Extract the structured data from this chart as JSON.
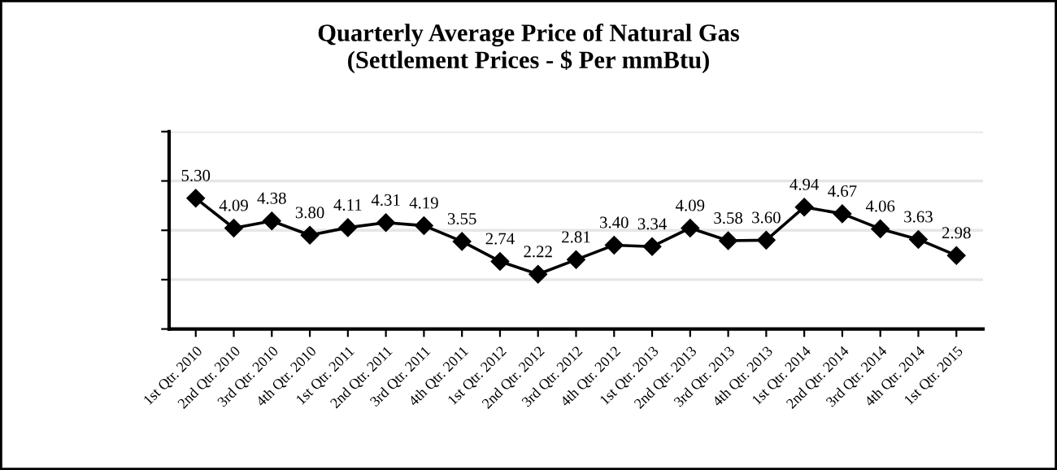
{
  "chart_data": {
    "type": "line",
    "title": "Quarterly Average Price of Natural Gas\n(Settlement Prices - $ Per mmBtu)",
    "categories": [
      "1st Qtr. 2010",
      "2nd Qtr. 2010",
      "3rd Qtr. 2010",
      "4th Qtr. 2010",
      "1st Qtr. 2011",
      "2nd Qtr. 2011",
      "3rd Qtr. 2011",
      "4th Qtr. 2011",
      "1st Qtr. 2012",
      "2nd Qtr. 2012",
      "3rd Qtr. 2012",
      "4th Qtr. 2012",
      "1st Qtr. 2013",
      "2nd Qtr. 2013",
      "3rd Qtr. 2013",
      "4th Qtr. 2013",
      "1st Qtr. 2014",
      "2nd Qtr. 2014",
      "3rd Qtr. 2014",
      "4th Qtr. 2014",
      "1st Qtr. 2015"
    ],
    "series": [
      {
        "color": "#000000",
        "values": [
          5.3,
          4.09,
          4.38,
          3.8,
          4.11,
          4.31,
          4.19,
          3.55,
          2.74,
          2.22,
          2.81,
          3.4,
          3.34,
          4.09,
          3.58,
          3.6,
          4.94,
          4.67,
          4.06,
          3.63,
          2.98
        ],
        "value_labels": [
          "5.30",
          "4.09",
          "4.38",
          "3.80",
          "4.11",
          "4.31",
          "4.19",
          "3.55",
          "2.74",
          "2.22",
          "2.81",
          "3.40",
          "3.34",
          "4.09",
          "3.58",
          "3.60",
          "4.94",
          "4.67",
          "4.06",
          "3.63",
          "2.98"
        ]
      }
    ],
    "ylim": [
      0,
      8
    ],
    "yticks": [
      {
        "value": 0,
        "label": null
      },
      {
        "value": 2,
        "label": null
      },
      {
        "value": 4,
        "label": null
      },
      {
        "value": 6,
        "label": null
      },
      {
        "value": 8,
        "label": null
      }
    ],
    "grid": "y",
    "marker": "diamond",
    "line_style": "solid",
    "legend": false,
    "tick_labels": "x"
  }
}
